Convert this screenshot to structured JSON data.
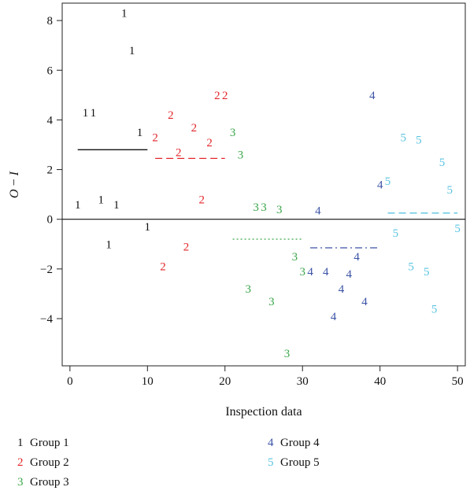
{
  "chart_data": {
    "type": "scatter",
    "title": "",
    "xlabel": "Inspection data",
    "ylabel_main": "O",
    "ylabel_sep": " − ",
    "ylabel_sub": "I",
    "xlim": [
      -1,
      51
    ],
    "ylim": [
      -5.9,
      8.7
    ],
    "x_ticks": [
      0,
      10,
      20,
      30,
      40,
      50
    ],
    "y_ticks": [
      8,
      6,
      4,
      2,
      0,
      -2,
      -4
    ],
    "y_tick_labels": [
      "8",
      "6",
      "4",
      "2",
      "0",
      "−2",
      "−4"
    ],
    "zero_line": 0,
    "series": [
      {
        "name": "Group 1",
        "marker": "1",
        "color": "#111111",
        "line_style": "solid",
        "mean": 2.8,
        "mean_range": [
          1,
          10
        ],
        "points": [
          [
            7,
            8.3
          ],
          [
            8,
            6.8
          ],
          [
            2,
            4.3
          ],
          [
            3,
            4.3
          ],
          [
            9,
            3.5
          ],
          [
            1,
            0.6
          ],
          [
            4,
            0.8
          ],
          [
            6,
            0.6
          ],
          [
            10,
            -0.3
          ],
          [
            5,
            -1.0
          ]
        ]
      },
      {
        "name": "Group 2",
        "marker": "2",
        "color": "#e3262b",
        "line_style": "dashed",
        "mean": 2.45,
        "mean_range": [
          11,
          20
        ],
        "points": [
          [
            19,
            5.0
          ],
          [
            20,
            5.0
          ],
          [
            13,
            4.2
          ],
          [
            16,
            3.7
          ],
          [
            11,
            3.3
          ],
          [
            18,
            3.1
          ],
          [
            14,
            2.7
          ],
          [
            17,
            0.8
          ],
          [
            15,
            -1.1
          ],
          [
            12,
            -1.9
          ]
        ]
      },
      {
        "name": "Group 3",
        "marker": "3",
        "color": "#3aa64a",
        "line_style": "dotted",
        "mean": -0.8,
        "mean_range": [
          21,
          30
        ],
        "points": [
          [
            21,
            3.5
          ],
          [
            22,
            2.6
          ],
          [
            24,
            0.5
          ],
          [
            25,
            0.5
          ],
          [
            27,
            0.4
          ],
          [
            29,
            -1.5
          ],
          [
            30,
            -2.1
          ],
          [
            23,
            -2.8
          ],
          [
            26,
            -3.3
          ],
          [
            28,
            -5.4
          ]
        ]
      },
      {
        "name": "Group 4",
        "marker": "4",
        "color": "#3a52a6",
        "line_style": "dashdot",
        "mean": -1.15,
        "mean_range": [
          31,
          40
        ],
        "points": [
          [
            39,
            5.0
          ],
          [
            40,
            1.4
          ],
          [
            32,
            0.35
          ],
          [
            37,
            -1.5
          ],
          [
            31,
            -2.1
          ],
          [
            33,
            -2.1
          ],
          [
            36,
            -2.2
          ],
          [
            35,
            -2.8
          ],
          [
            38,
            -3.3
          ],
          [
            34,
            -3.9
          ]
        ]
      },
      {
        "name": "Group 5",
        "marker": "5",
        "color": "#5bc4e0",
        "line_style": "dashed",
        "mean": 0.25,
        "mean_range": [
          41,
          50
        ],
        "points": [
          [
            43,
            3.3
          ],
          [
            45,
            3.2
          ],
          [
            48,
            2.3
          ],
          [
            41,
            1.55
          ],
          [
            49,
            1.2
          ],
          [
            50,
            -0.35
          ],
          [
            42,
            -0.55
          ],
          [
            44,
            -1.9
          ],
          [
            46,
            -2.1
          ],
          [
            47,
            -3.6
          ]
        ]
      }
    ],
    "legend": [
      {
        "marker": "1",
        "label": "Group 1",
        "color": "#111111"
      },
      {
        "marker": "2",
        "label": "Group 2",
        "color": "#e3262b"
      },
      {
        "marker": "3",
        "label": "Group 3",
        "color": "#3aa64a"
      },
      {
        "marker": "4",
        "label": "Group 4",
        "color": "#3a52a6"
      },
      {
        "marker": "5",
        "label": "Group 5",
        "color": "#5bc4e0"
      }
    ],
    "legend_placement": "bottom",
    "grid": false
  }
}
